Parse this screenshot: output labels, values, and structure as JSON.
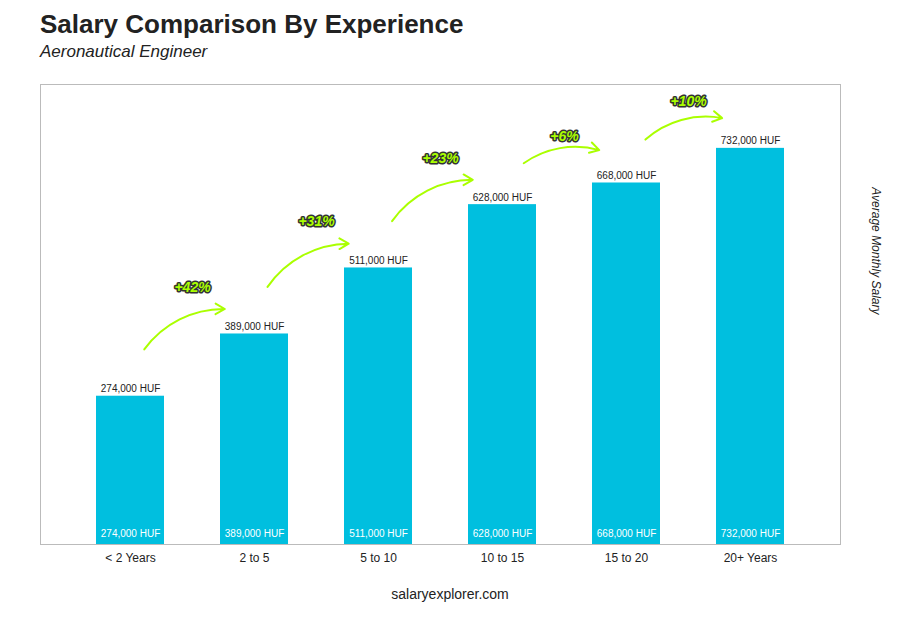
{
  "chart_data": {
    "type": "bar",
    "title": "Salary Comparison By Experience",
    "subtitle": "Aeronautical Engineer",
    "ylabel": "Average Monthly Salary",
    "caption": "salaryexplorer.com",
    "categories": [
      "< 2 Years",
      "2 to 5",
      "5 to 10",
      "10 to 15",
      "15 to 20",
      "20+ Years"
    ],
    "values": [
      274000,
      389000,
      511000,
      628000,
      668000,
      732000
    ],
    "value_labels": [
      "274,000 HUF",
      "389,000 HUF",
      "511,000 HUF",
      "628,000 HUF",
      "668,000 HUF",
      "732,000 HUF"
    ],
    "data_labels": true,
    "color": "#00BFDF",
    "annotations": [
      {
        "text": "+42%",
        "color": "#aaff00"
      },
      {
        "text": "+31%",
        "color": "#aaff00"
      },
      {
        "text": "+23%",
        "color": "#aaff00"
      },
      {
        "text": "+6%",
        "color": "#aaff00"
      },
      {
        "text": "+10%",
        "color": "#aaff00"
      }
    ],
    "ylim": [
      0,
      850000
    ],
    "tick_labels": "x"
  }
}
